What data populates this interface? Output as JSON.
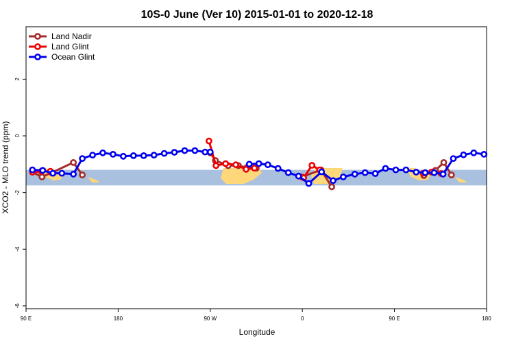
{
  "chart_data": {
    "type": "line",
    "title": "10S-0 June (Ver 10)   2015-01-01 to 2020-12-18",
    "xlabel": "Longitude",
    "ylabel": "XCO2 - MLO trend (ppm)",
    "xlim": [
      90,
      450
    ],
    "ylim": [
      -6.1,
      3.85
    ],
    "x_ticks": [
      {
        "value": 90,
        "label": "90 E"
      },
      {
        "value": 162,
        "label": "180"
      },
      {
        "value": 234,
        "label": "90 W"
      },
      {
        "value": 306,
        "label": "0"
      },
      {
        "value": 378,
        "label": "90 E"
      },
      {
        "value": 450,
        "label": "180"
      }
    ],
    "y_ticks": [
      {
        "value": 2,
        "label": "2"
      },
      {
        "value": 0,
        "label": "0"
      },
      {
        "value": -2,
        "label": "-2"
      },
      {
        "value": -4,
        "label": "-4"
      },
      {
        "value": -6,
        "label": "-6"
      }
    ],
    "latitude_band": {
      "y_min": -1.75,
      "y_max": -1.2,
      "color": "#a9c0de",
      "land_color": "#fdd77a"
    },
    "legend_position": "top-left",
    "series": [
      {
        "name": "Land Nadir",
        "color": "#a52a2a",
        "segments": [
          [
            [
              95.0,
              -1.28
            ],
            [
              102.5,
              -1.45
            ],
            [
              110.0,
              -1.3
            ],
            [
              127.0,
              -0.94
            ],
            [
              134.0,
              -1.38
            ]
          ],
          [
            [
              234.0,
              -0.6
            ],
            [
              238.0,
              -0.87
            ],
            [
              248.0,
              -1.05
            ],
            [
              256.0,
              -1.05
            ],
            [
              262.5,
              -1.12
            ],
            [
              270.0,
              -1.14
            ]
          ],
          [
            [
              305.5,
              -1.45
            ],
            [
              320.5,
              -1.2
            ],
            [
              329.0,
              -1.8
            ]
          ],
          [
            [
              401.0,
              -1.4
            ],
            [
              410.0,
              -1.22
            ],
            [
              416.5,
              -0.94
            ],
            [
              422.5,
              -1.38
            ]
          ]
        ]
      },
      {
        "name": "Land Glint",
        "color": "#ee0000",
        "segments": [
          [
            [
              95.0,
              -1.28
            ],
            [
              102.0,
              -1.25
            ],
            [
              109.0,
              -1.25
            ]
          ],
          [
            [
              233.0,
              -0.18
            ],
            [
              238.5,
              -1.05
            ],
            [
              246.0,
              -0.98
            ],
            [
              254.0,
              -1.02
            ],
            [
              262.0,
              -1.18
            ],
            [
              268.5,
              -1.14
            ]
          ],
          [
            [
              307.0,
              -1.48
            ],
            [
              313.5,
              -1.04
            ],
            [
              319.5,
              -1.2
            ]
          ],
          [
            [
              400.5,
              -1.32
            ],
            [
              407.0,
              -1.28
            ],
            [
              414.5,
              -1.33
            ]
          ]
        ]
      },
      {
        "name": "Ocean Glint",
        "color": "#0000ee",
        "segments": [
          [
            [
              95.0,
              -1.2
            ],
            [
              103.0,
              -1.22
            ],
            [
              111.0,
              -1.32
            ],
            [
              118.0,
              -1.32
            ],
            [
              127.0,
              -1.35
            ],
            [
              134.0,
              -0.8
            ],
            [
              142.0,
              -0.68
            ],
            [
              150.0,
              -0.6
            ],
            [
              158.0,
              -0.65
            ],
            [
              166.0,
              -0.72
            ],
            [
              174.0,
              -0.7
            ],
            [
              182.0,
              -0.7
            ],
            [
              190.0,
              -0.68
            ],
            [
              198.0,
              -0.62
            ],
            [
              206.0,
              -0.58
            ],
            [
              214.0,
              -0.52
            ],
            [
              222.0,
              -0.52
            ],
            [
              230.0,
              -0.57
            ],
            [
              234.0,
              -0.57
            ]
          ],
          [
            [
              264.5,
              -1.0
            ],
            [
              272.0,
              -0.98
            ],
            [
              279.0,
              -1.02
            ],
            [
              287.0,
              -1.15
            ],
            [
              295.0,
              -1.3
            ],
            [
              303.0,
              -1.42
            ],
            [
              311.0,
              -1.68
            ],
            [
              321.0,
              -1.27
            ],
            [
              330.0,
              -1.58
            ],
            [
              338.0,
              -1.45
            ],
            [
              347.0,
              -1.35
            ],
            [
              355.0,
              -1.3
            ],
            [
              363.0,
              -1.33
            ],
            [
              371.0,
              -1.15
            ],
            [
              379.0,
              -1.2
            ],
            [
              387.0,
              -1.2
            ],
            [
              395.0,
              -1.28
            ],
            [
              402.0,
              -1.3
            ],
            [
              409.0,
              -1.3
            ],
            [
              416.0,
              -1.35
            ],
            [
              424.0,
              -0.8
            ],
            [
              432.0,
              -0.67
            ],
            [
              440.0,
              -0.6
            ],
            [
              448.0,
              -0.65
            ]
          ]
        ]
      }
    ]
  }
}
